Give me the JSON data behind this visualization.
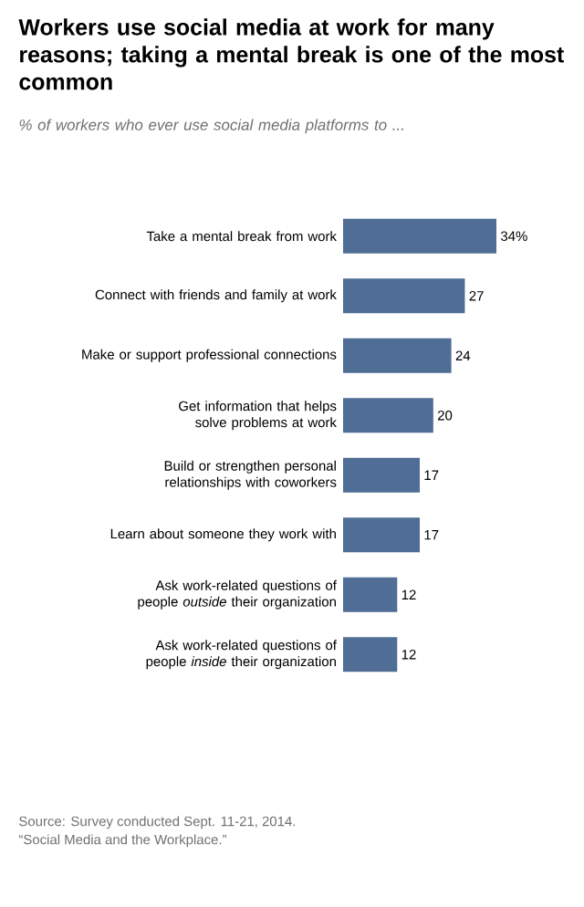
{
  "chart_data": {
    "type": "bar",
    "orientation": "horizontal",
    "title": "Workers use social media at work for many reasons; taking a mental break is one of the most common",
    "subtitle": "% of workers who ever use social media platforms to ...",
    "categories": [
      "Take a mental break from work",
      "Connect with friends and family at work",
      "Make or support professional connections",
      "Get information that helps solve problems at work",
      "Build or strengthen personal relationships with coworkers",
      "Learn about someone they work with",
      "Ask work-related questions of people *outside* their organization",
      "Ask work-related questions of people *inside* their organization"
    ],
    "values": [
      34,
      27,
      24,
      20,
      17,
      17,
      12,
      12
    ],
    "value_labels": [
      "34%",
      "27",
      "24",
      "20",
      "17",
      "17",
      "12",
      "12"
    ],
    "color": "#4f6d95",
    "annotations": [
      "Source: Survey conducted Sept. 11-21, 2014.",
      "“Social Media and the Workplace.”"
    ]
  }
}
